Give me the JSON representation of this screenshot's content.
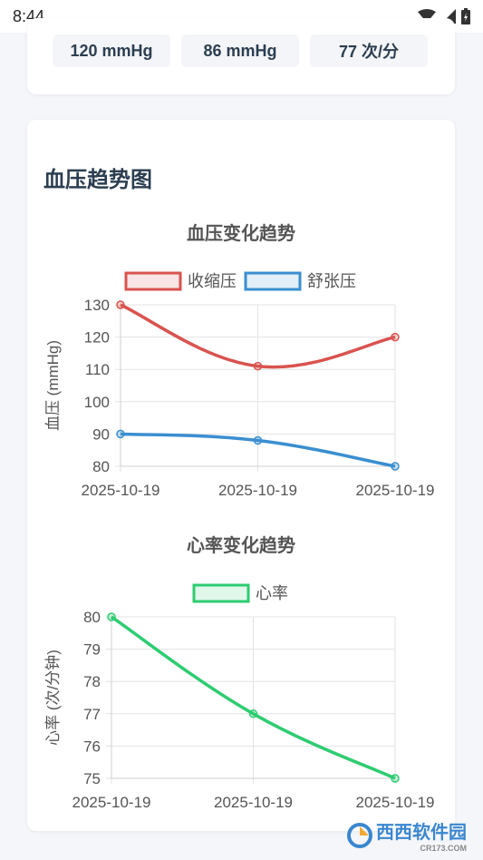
{
  "status_bar": {
    "time": "8:44"
  },
  "summary": {
    "systolic": "120 mmHg",
    "diastolic": "86 mmHg",
    "heart_rate": "77 次/分"
  },
  "trend_section": {
    "title": "血压趋势图"
  },
  "colors": {
    "systolic": "#d9534f",
    "diastolic": "#3a8fd0",
    "heart_rate": "#2ecc71"
  },
  "watermark": {
    "brand": "西西软件园",
    "site": "CR173.COM"
  },
  "chart_data": [
    {
      "type": "line",
      "title": "血压变化趋势",
      "categories": [
        "2025-10-19",
        "2025-10-19",
        "2025-10-19"
      ],
      "series": [
        {
          "name": "收缩压",
          "values": [
            130,
            111,
            120
          ],
          "color": "#d9534f"
        },
        {
          "name": "舒张压",
          "values": [
            90,
            88,
            80
          ],
          "color": "#3a8fd0"
        }
      ],
      "ylabel": "血压 (mmHg)",
      "ylim": [
        80,
        130
      ],
      "yticks": [
        80,
        90,
        100,
        110,
        120,
        130
      ],
      "legend": "top-center",
      "grid": true
    },
    {
      "type": "line",
      "title": "心率变化趋势",
      "categories": [
        "2025-10-19",
        "2025-10-19",
        "2025-10-19"
      ],
      "series": [
        {
          "name": "心率",
          "values": [
            80,
            77,
            75
          ],
          "color": "#2ecc71"
        }
      ],
      "ylabel": "心率 (次/分钟)",
      "ylim": [
        75,
        80
      ],
      "yticks": [
        75,
        76,
        77,
        78,
        79,
        80
      ],
      "legend": "top-center",
      "grid": true
    }
  ]
}
